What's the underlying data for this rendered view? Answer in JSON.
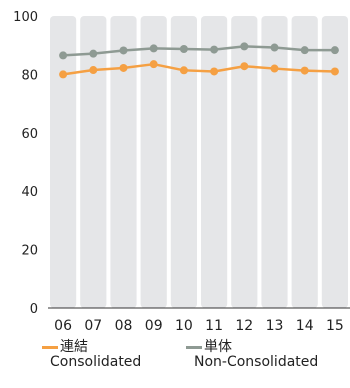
{
  "chart_data": {
    "type": "line",
    "categories": [
      "06",
      "07",
      "08",
      "09",
      "10",
      "11",
      "12",
      "13",
      "14",
      "15"
    ],
    "series": [
      {
        "name": "連結 Consolidated",
        "label_ja": "連結",
        "label_en": "Consolidated",
        "color": "#f5a043",
        "values": [
          80.0,
          81.5,
          82.2,
          83.5,
          81.4,
          81.0,
          82.8,
          82.0,
          81.3,
          81.0
        ]
      },
      {
        "name": "単体 Non-Consolidated",
        "label_ja": "単体",
        "label_en": "Non-Consolidated",
        "color": "#8e9a93",
        "values": [
          86.5,
          87.1,
          88.2,
          88.9,
          88.7,
          88.5,
          89.6,
          89.2,
          88.3,
          88.3
        ]
      }
    ],
    "yticks": [
      "0",
      "20",
      "40",
      "60",
      "80",
      "100"
    ],
    "ylim": [
      0,
      100
    ],
    "title": "",
    "xlabel": "",
    "ylabel": "",
    "grid": false,
    "legend_position": "bottom",
    "band_color": "#e5e6e8"
  }
}
